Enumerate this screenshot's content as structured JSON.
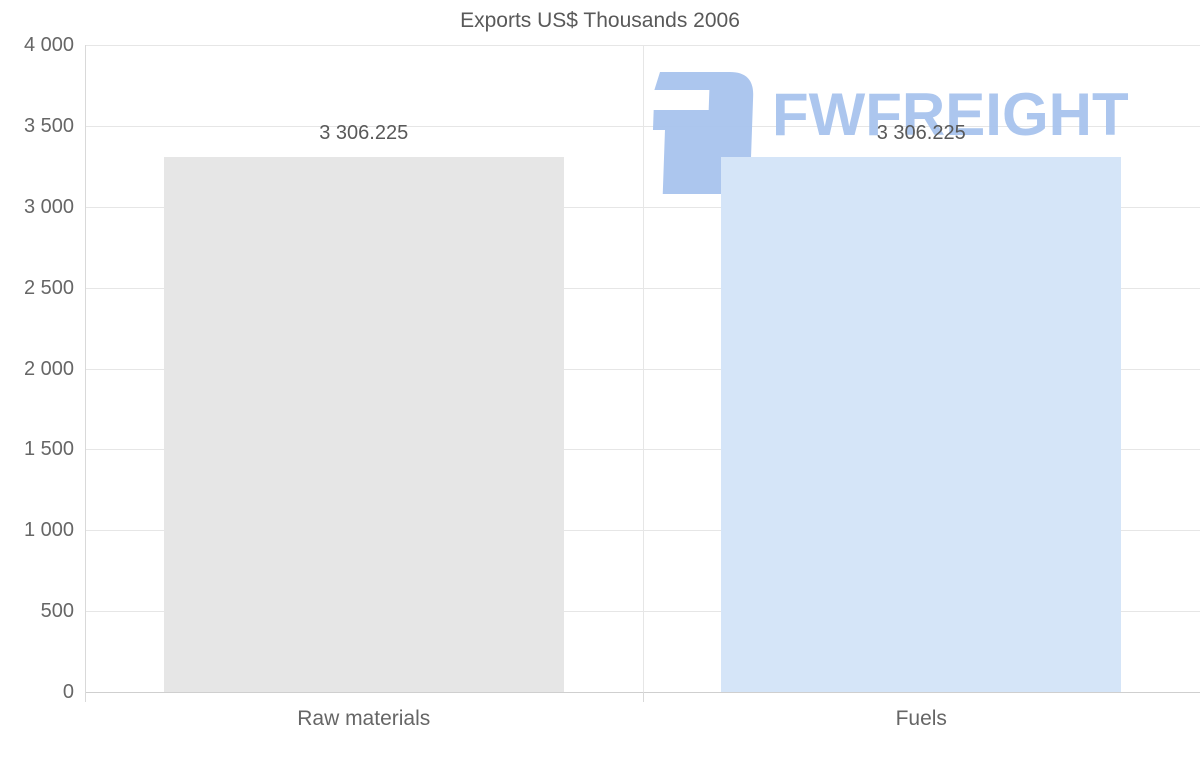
{
  "chart_data": {
    "type": "bar",
    "title": "Exports US$ Thousands 2006",
    "categories": [
      "Raw materials",
      "Fuels"
    ],
    "series": [
      {
        "name": "Exports US$ Thousands 2006",
        "values": [
          3306.225,
          3306.225
        ]
      }
    ],
    "value_labels": [
      "3 306.225",
      "3 306.225"
    ],
    "xlabel": "",
    "ylabel": "",
    "ylim": [
      0,
      4000
    ],
    "ytick_step": 500,
    "ytick_labels": [
      "0",
      "500",
      "1 000",
      "1 500",
      "2 000",
      "2 500",
      "3 000",
      "3 500",
      "4 000"
    ],
    "grid": true,
    "legend": false,
    "bar_colors": [
      "#e6e6e6",
      "#d5e5f8"
    ],
    "gridline_color": "#e6e6e6",
    "baseline_color": "#cfcfcf",
    "axis_line_color": "#d9d9d9",
    "title_color": "#595959",
    "value_label_color": "#595959",
    "axis_text_color": "#666666"
  },
  "watermark": {
    "brand": "FWFREIGHT",
    "color": "#a8c4ee"
  }
}
